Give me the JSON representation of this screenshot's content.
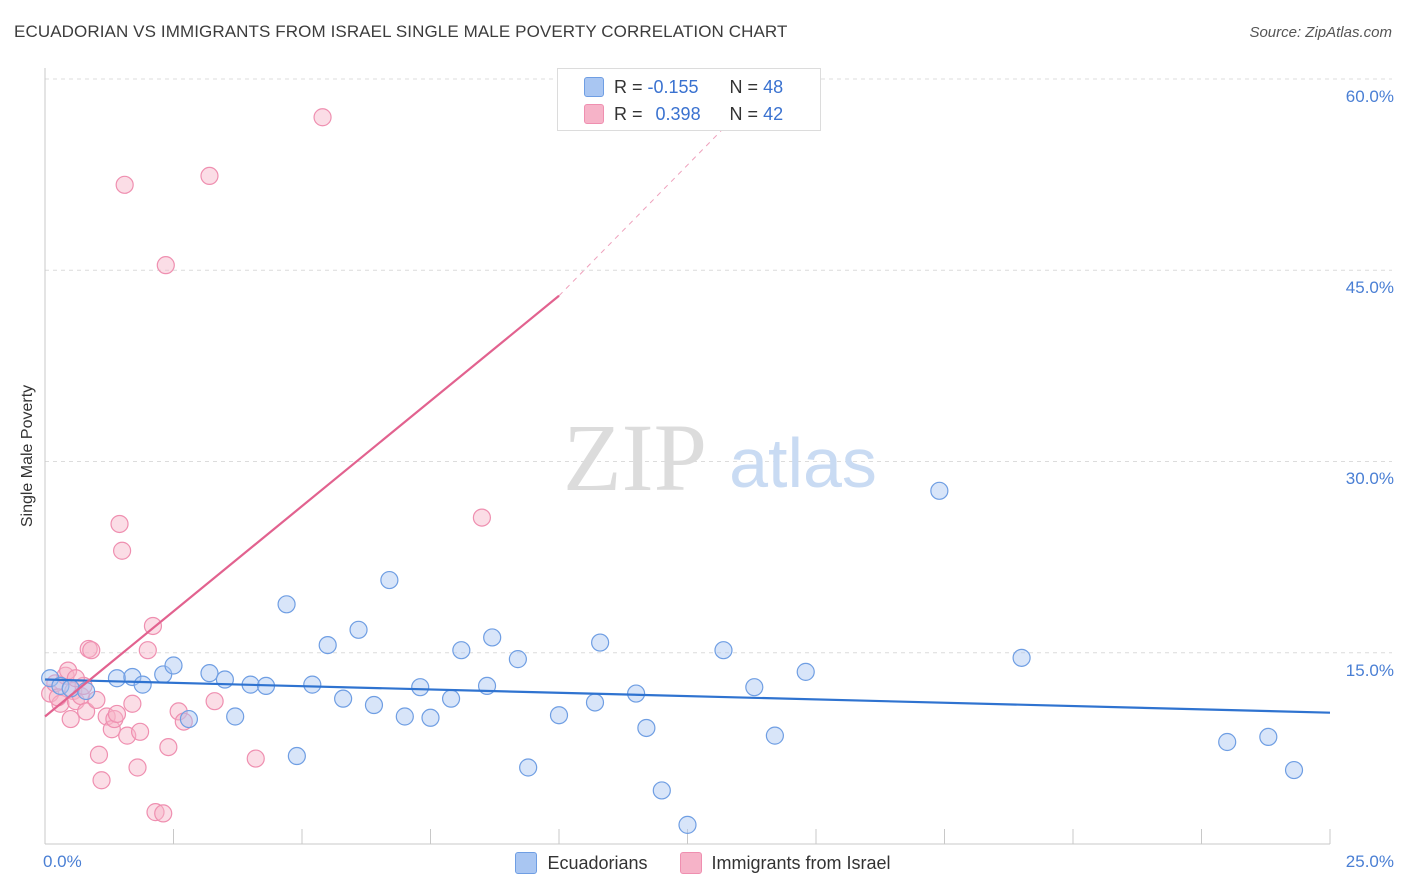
{
  "title": "ECUADORIAN VS IMMIGRANTS FROM ISRAEL SINGLE MALE POVERTY CORRELATION CHART",
  "source": "Source: ZipAtlas.com",
  "watermark": {
    "zip": "ZIP",
    "atlas": "atlas"
  },
  "colors": {
    "blue_fill": "#a9c6f2",
    "blue_stroke": "#6f9ee3",
    "blue_line": "#2f73d0",
    "pink_fill": "#f6b3c8",
    "pink_stroke": "#ef8fb0",
    "pink_line": "#e2628f",
    "grid": "#dcdcdc",
    "tick_text": "#4a7fd4"
  },
  "legend": {
    "rows": [
      {
        "r_label": "R =",
        "r_value": "-0.155",
        "n_label": "N =",
        "n_value": "48",
        "series": "blue"
      },
      {
        "r_label": "R =",
        "r_value": "0.398",
        "n_label": "N =",
        "n_value": "42",
        "series": "pink"
      }
    ]
  },
  "bottom_legend": [
    "Ecuadorians",
    "Immigrants from Israel"
  ],
  "chart_data": {
    "type": "scatter",
    "title": "ECUADORIAN VS IMMIGRANTS FROM ISRAEL SINGLE MALE POVERTY CORRELATION CHART",
    "xlabel": "",
    "ylabel": "Single Male Poverty",
    "xlim": [
      0,
      25
    ],
    "ylim": [
      0,
      60
    ],
    "x_tick_labels": [
      "0.0%",
      "25.0%"
    ],
    "y_ticks": [
      15,
      30,
      45,
      60
    ],
    "y_tick_labels": [
      "15.0%",
      "30.0%",
      "45.0%",
      "60.0%"
    ],
    "grid": true,
    "series": [
      {
        "name": "Ecuadorians",
        "color": "blue",
        "R": -0.155,
        "N": 48,
        "trend": {
          "x": [
            0,
            25
          ],
          "y": [
            12.9,
            10.3
          ],
          "style": "solid"
        },
        "points": [
          [
            0.1,
            13.0
          ],
          [
            0.3,
            12.4
          ],
          [
            0.5,
            12.2
          ],
          [
            0.8,
            12.0
          ],
          [
            1.4,
            13.0
          ],
          [
            1.7,
            13.1
          ],
          [
            1.9,
            12.5
          ],
          [
            2.3,
            13.3
          ],
          [
            2.5,
            14.0
          ],
          [
            2.8,
            9.8
          ],
          [
            3.2,
            13.4
          ],
          [
            3.5,
            12.9
          ],
          [
            3.7,
            10.0
          ],
          [
            4.0,
            12.5
          ],
          [
            4.3,
            12.4
          ],
          [
            4.7,
            18.8
          ],
          [
            4.9,
            6.9
          ],
          [
            5.2,
            12.5
          ],
          [
            5.5,
            15.6
          ],
          [
            5.8,
            11.4
          ],
          [
            6.1,
            16.8
          ],
          [
            6.4,
            10.9
          ],
          [
            6.7,
            20.7
          ],
          [
            7.0,
            10.0
          ],
          [
            7.3,
            12.3
          ],
          [
            7.5,
            9.9
          ],
          [
            7.9,
            11.4
          ],
          [
            8.1,
            15.2
          ],
          [
            8.6,
            12.4
          ],
          [
            8.7,
            16.2
          ],
          [
            9.2,
            14.5
          ],
          [
            9.4,
            6.0
          ],
          [
            10.0,
            10.1
          ],
          [
            10.7,
            11.1
          ],
          [
            10.8,
            15.8
          ],
          [
            11.5,
            11.8
          ],
          [
            11.7,
            9.1
          ],
          [
            12.0,
            4.2
          ],
          [
            12.5,
            1.5
          ],
          [
            13.2,
            15.2
          ],
          [
            13.8,
            12.3
          ],
          [
            14.2,
            8.5
          ],
          [
            14.8,
            13.5
          ],
          [
            17.4,
            27.7
          ],
          [
            19.0,
            14.6
          ],
          [
            23.0,
            8.0
          ],
          [
            23.8,
            8.4
          ],
          [
            24.3,
            5.8
          ]
        ]
      },
      {
        "name": "Immigrants from Israel",
        "color": "pink",
        "R": 0.398,
        "N": 42,
        "trend": {
          "x": [
            0,
            10
          ],
          "y": [
            10.0,
            43.0
          ],
          "style": "solid",
          "extended": {
            "x": [
              10,
              13.9
            ],
            "y": [
              43.0,
              59.0
            ],
            "style": "dashed"
          }
        },
        "points": [
          [
            0.1,
            11.8
          ],
          [
            0.2,
            12.6
          ],
          [
            0.3,
            11.0
          ],
          [
            0.4,
            13.2
          ],
          [
            0.45,
            13.6
          ],
          [
            0.5,
            9.8
          ],
          [
            0.55,
            12.0
          ],
          [
            0.6,
            11.2
          ],
          [
            0.7,
            11.6
          ],
          [
            0.75,
            12.4
          ],
          [
            0.8,
            10.4
          ],
          [
            0.85,
            15.3
          ],
          [
            0.9,
            15.2
          ],
          [
            1.0,
            11.3
          ],
          [
            1.05,
            7.0
          ],
          [
            1.1,
            5.0
          ],
          [
            1.2,
            10.0
          ],
          [
            1.3,
            9.0
          ],
          [
            1.35,
            9.8
          ],
          [
            1.4,
            10.2
          ],
          [
            1.45,
            25.1
          ],
          [
            1.5,
            23.0
          ],
          [
            1.55,
            51.7
          ],
          [
            1.6,
            8.5
          ],
          [
            1.7,
            11.0
          ],
          [
            1.8,
            6.0
          ],
          [
            1.85,
            8.8
          ],
          [
            2.0,
            15.2
          ],
          [
            2.1,
            17.1
          ],
          [
            2.15,
            2.5
          ],
          [
            2.3,
            2.4
          ],
          [
            2.35,
            45.4
          ],
          [
            2.4,
            7.6
          ],
          [
            2.6,
            10.4
          ],
          [
            2.7,
            9.6
          ],
          [
            3.2,
            52.4
          ],
          [
            3.3,
            11.2
          ],
          [
            4.1,
            6.7
          ],
          [
            5.4,
            57.0
          ],
          [
            8.5,
            25.6
          ],
          [
            0.25,
            11.5
          ],
          [
            0.6,
            13.0
          ]
        ]
      }
    ]
  }
}
